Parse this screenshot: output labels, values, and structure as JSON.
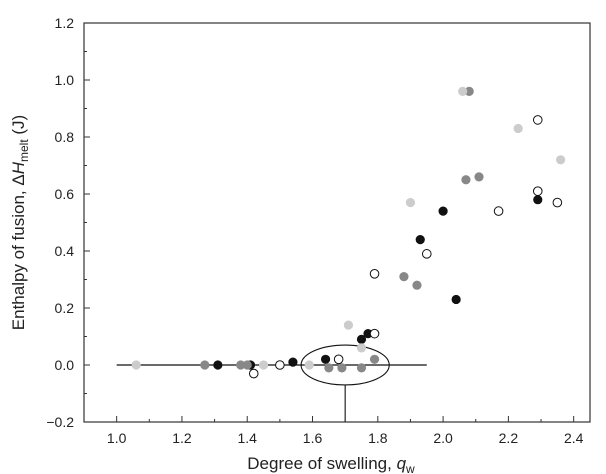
{
  "chart_data": {
    "type": "scatter",
    "title": "",
    "xlabel": "Degree of swelling, ",
    "xlabel_var": "q",
    "xlabel_sub": "w",
    "ylabel": "Enthalpy of fusion, Δ",
    "ylabel_var": "H",
    "ylabel_sub": "melt",
    "ylabel_unit": " (J)",
    "xlim": [
      0.9,
      2.45
    ],
    "ylim": [
      -0.2,
      1.2
    ],
    "x_ticks": [
      1.0,
      1.2,
      1.4,
      1.6,
      1.8,
      2.0,
      2.2,
      2.4
    ],
    "x_tick_labels": [
      "1.0",
      "1.2",
      "1.4",
      "1.6",
      "1.8",
      "2.0",
      "2.2",
      "2.4"
    ],
    "y_ticks": [
      -0.2,
      0.0,
      0.2,
      0.4,
      0.6,
      0.8,
      1.0,
      1.2
    ],
    "y_tick_labels": [
      "−0.2",
      "0.0",
      "0.2",
      "0.4",
      "0.6",
      "0.8",
      "1.0",
      "1.2"
    ],
    "grid": false,
    "marker_colors": {
      "black": "#111111",
      "dark_gray": "#888888",
      "light_gray": "#cccccc",
      "open": "#ffffff"
    },
    "series": [
      {
        "style": "black",
        "points": [
          {
            "x": 1.31,
            "y": 0.0
          },
          {
            "x": 1.41,
            "y": 0.0
          },
          {
            "x": 1.54,
            "y": 0.01
          },
          {
            "x": 1.64,
            "y": 0.02
          },
          {
            "x": 1.75,
            "y": 0.09
          },
          {
            "x": 1.77,
            "y": 0.11
          },
          {
            "x": 1.93,
            "y": 0.44
          },
          {
            "x": 2.0,
            "y": 0.54
          },
          {
            "x": 2.04,
            "y": 0.23
          },
          {
            "x": 2.29,
            "y": 0.58
          }
        ]
      },
      {
        "style": "dark_gray",
        "points": [
          {
            "x": 1.27,
            "y": 0.0
          },
          {
            "x": 1.38,
            "y": 0.0
          },
          {
            "x": 1.4,
            "y": 0.0
          },
          {
            "x": 1.65,
            "y": -0.01
          },
          {
            "x": 1.69,
            "y": -0.01
          },
          {
            "x": 1.75,
            "y": -0.01
          },
          {
            "x": 1.79,
            "y": 0.02
          },
          {
            "x": 1.88,
            "y": 0.31
          },
          {
            "x": 1.92,
            "y": 0.28
          },
          {
            "x": 2.07,
            "y": 0.65
          },
          {
            "x": 2.08,
            "y": 0.96
          },
          {
            "x": 2.11,
            "y": 0.66
          }
        ]
      },
      {
        "style": "light_gray",
        "points": [
          {
            "x": 1.06,
            "y": 0.0
          },
          {
            "x": 1.45,
            "y": 0.0
          },
          {
            "x": 1.59,
            "y": 0.0
          },
          {
            "x": 1.71,
            "y": 0.14
          },
          {
            "x": 1.75,
            "y": 0.06
          },
          {
            "x": 1.9,
            "y": 0.57
          },
          {
            "x": 2.06,
            "y": 0.96
          },
          {
            "x": 2.23,
            "y": 0.83
          },
          {
            "x": 2.36,
            "y": 0.72
          }
        ]
      },
      {
        "style": "open",
        "points": [
          {
            "x": 1.42,
            "y": -0.03
          },
          {
            "x": 1.5,
            "y": 0.0
          },
          {
            "x": 1.68,
            "y": 0.02
          },
          {
            "x": 1.79,
            "y": 0.11
          },
          {
            "x": 1.79,
            "y": 0.32
          },
          {
            "x": 1.95,
            "y": 0.39
          },
          {
            "x": 2.17,
            "y": 0.54
          },
          {
            "x": 2.29,
            "y": 0.61
          },
          {
            "x": 2.29,
            "y": 0.86
          },
          {
            "x": 2.35,
            "y": 0.57
          }
        ]
      }
    ],
    "annotations": {
      "baseline": {
        "x_start": 1.0,
        "x_end": 1.95,
        "y": 0.0
      },
      "ellipse": {
        "cx": 1.7,
        "cy": 0.0,
        "rx": 0.135,
        "ry": 0.07
      },
      "vertical_line": {
        "x": 1.7,
        "y_from": -0.07,
        "y_to": -0.2
      }
    }
  }
}
